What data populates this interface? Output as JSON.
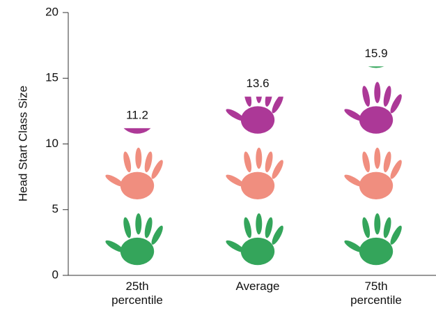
{
  "chart_data": {
    "type": "pictogram",
    "y_label": "Head Start Class Size",
    "categories": [
      "25th percentile",
      "Average",
      "75th percentile"
    ],
    "values": [
      11.2,
      13.6,
      15.9
    ],
    "colors": [
      "#1f9c4a",
      "#ef8272",
      "#a4238c"
    ],
    "ylim": [
      0,
      20
    ],
    "yticks": [
      0,
      5,
      10,
      15,
      20
    ]
  }
}
